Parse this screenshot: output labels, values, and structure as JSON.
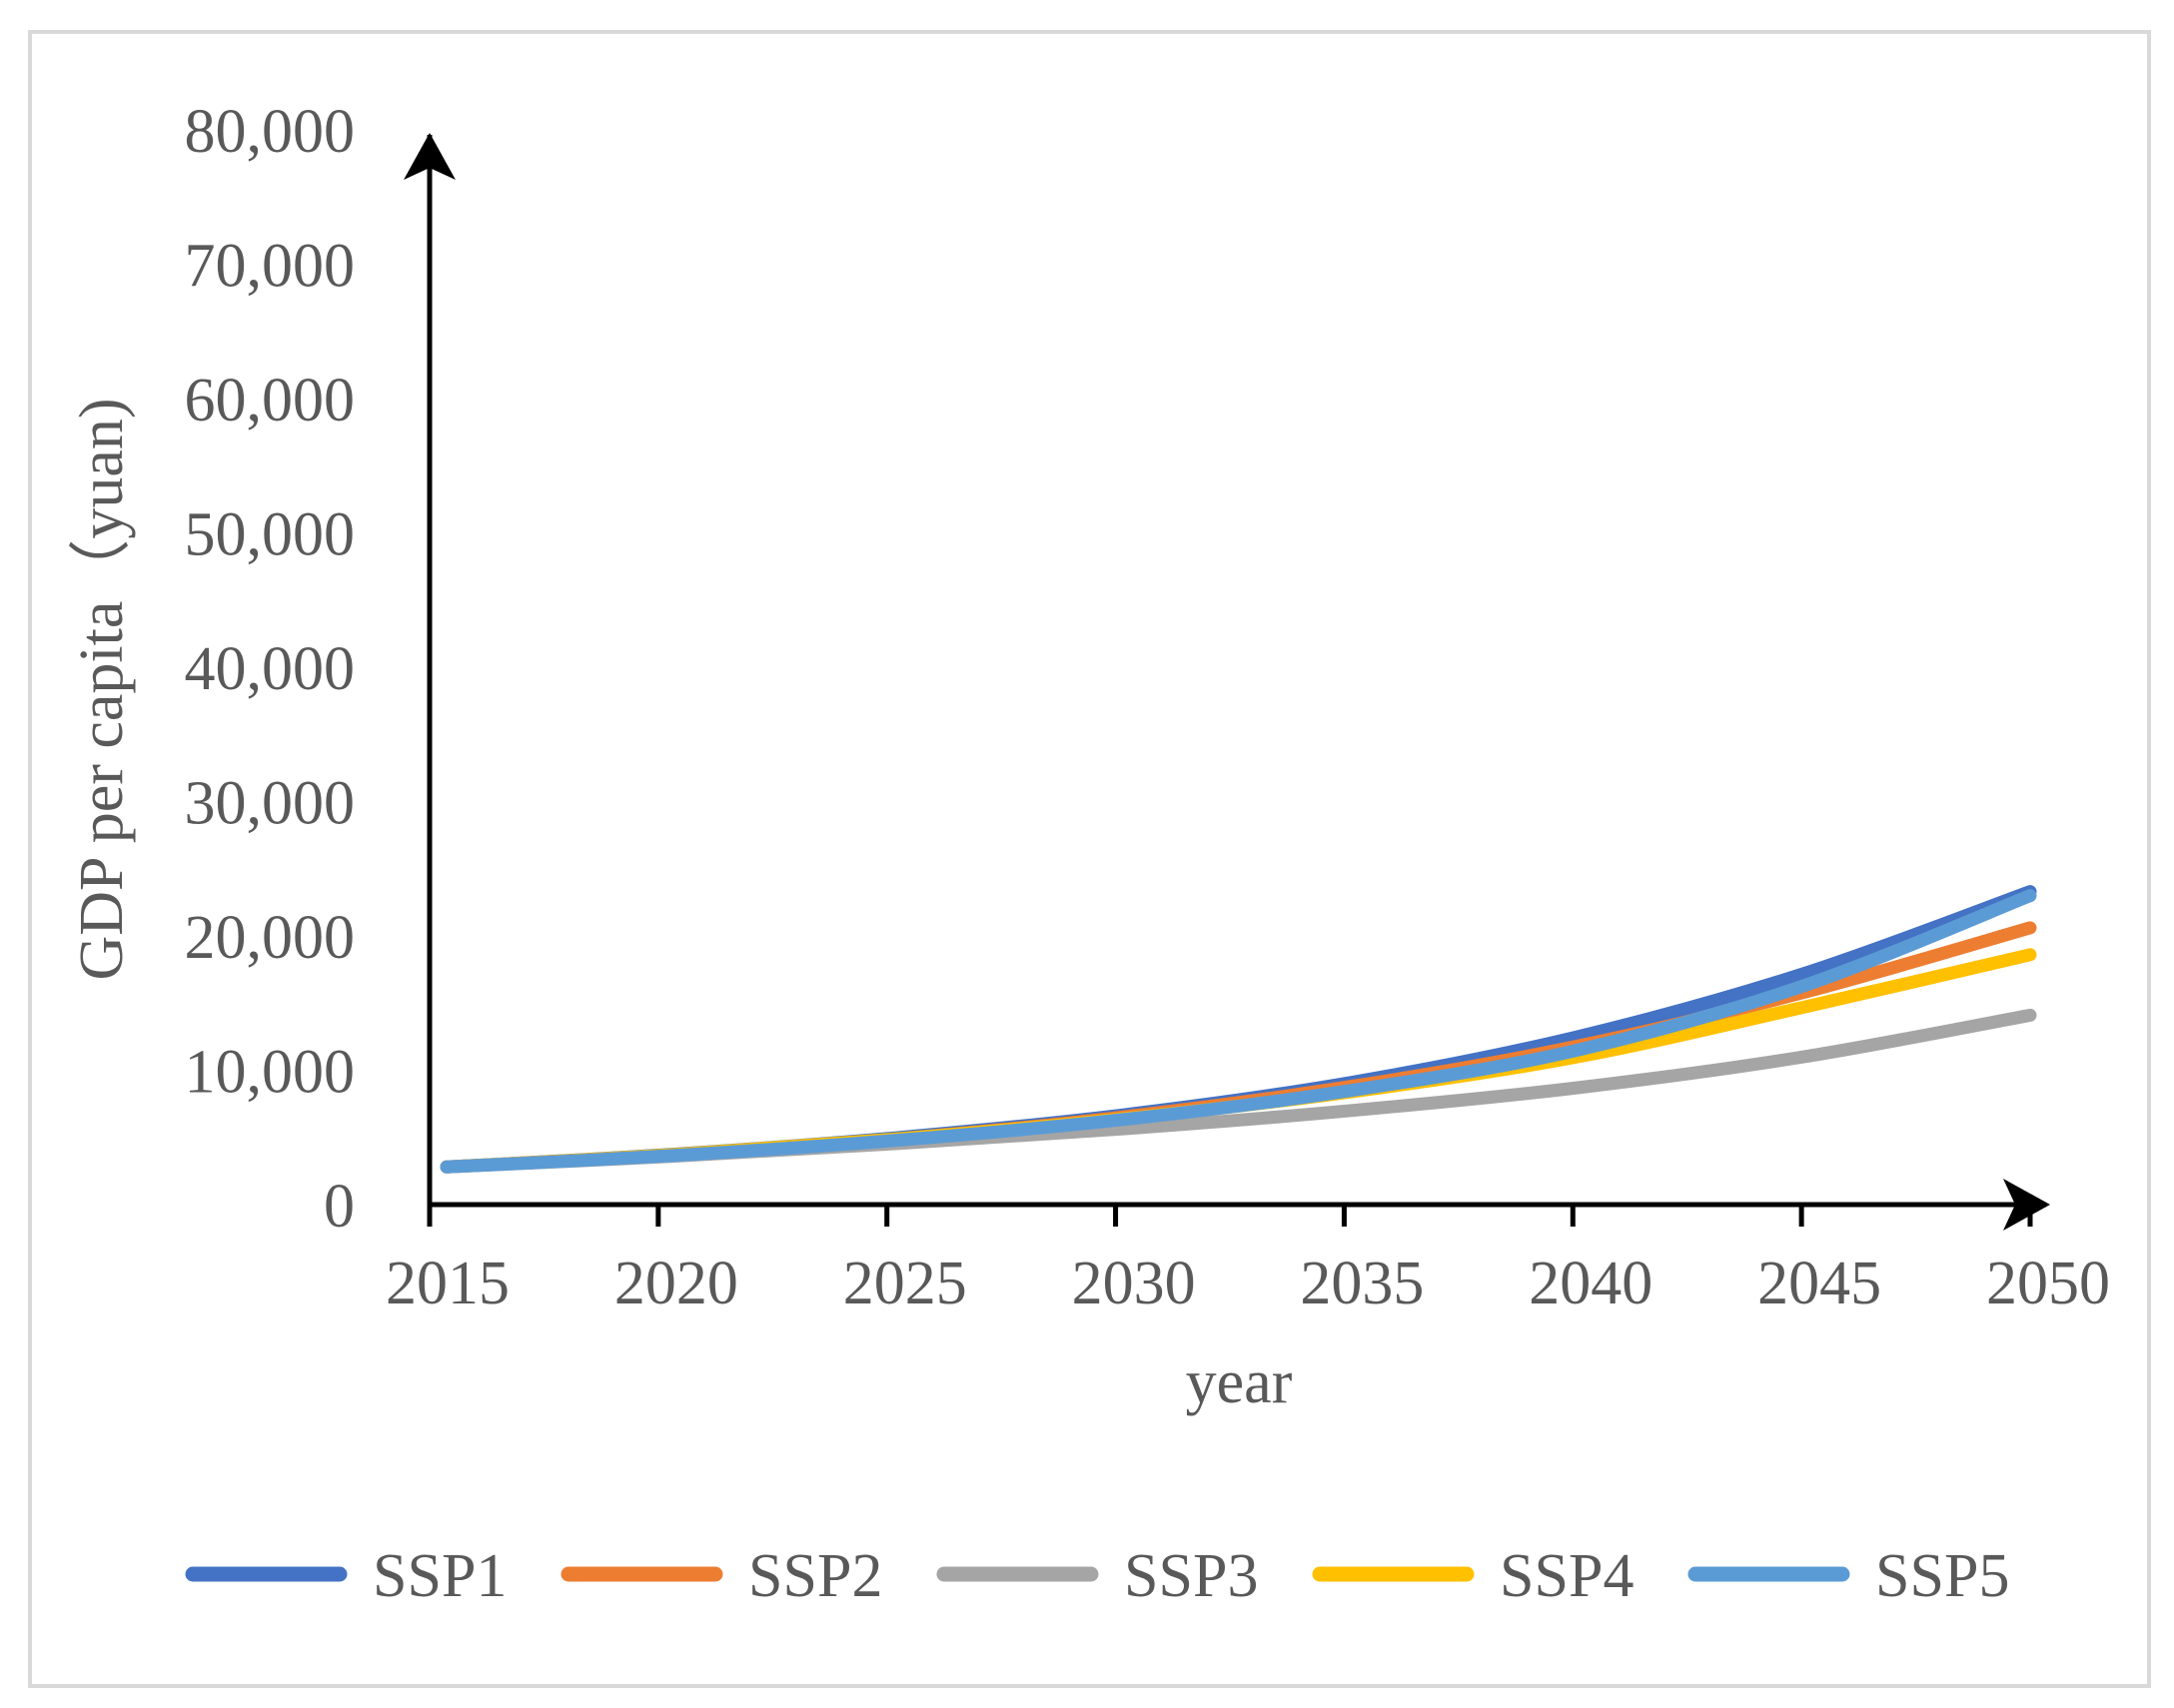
{
  "chart_data": {
    "type": "line",
    "title": "",
    "xlabel": "year",
    "ylabel": "GDP per capita（yuan)",
    "xlim": [
      2015,
      2050
    ],
    "ylim": [
      0,
      80000
    ],
    "x_ticks": [
      2015,
      2020,
      2025,
      2030,
      2035,
      2040,
      2045,
      2050
    ],
    "x_tick_labels": [
      "2015",
      "2020",
      "2025",
      "2030",
      "2035",
      "2040",
      "2045",
      "2050"
    ],
    "y_ticks": [
      0,
      10000,
      20000,
      30000,
      40000,
      50000,
      60000,
      70000,
      80000
    ],
    "y_tick_labels": [
      "0",
      "10,000",
      "20,000",
      "30,000",
      "40,000",
      "50,000",
      "60,000",
      "70,000",
      "80,000"
    ],
    "grid": false,
    "legend_position": "bottom",
    "x": [
      2015,
      2020,
      2025,
      2030,
      2035,
      2040,
      2045,
      2050
    ],
    "series": [
      {
        "name": "SSP1",
        "color": "#4472c4",
        "values": [
          2800,
          3750,
          5000,
          6700,
          9100,
          12500,
          17200,
          23300
        ]
      },
      {
        "name": "SSP2",
        "color": "#ed7d31",
        "values": [
          2800,
          3700,
          4900,
          6550,
          8800,
          11800,
          15800,
          20600
        ]
      },
      {
        "name": "SSP3",
        "color": "#a5a5a5",
        "values": [
          2800,
          3600,
          4550,
          5650,
          7000,
          8700,
          11000,
          14100
        ]
      },
      {
        "name": "SSP4",
        "color": "#ffc000",
        "values": [
          2800,
          3720,
          4900,
          6400,
          8400,
          11000,
          14700,
          18600
        ]
      },
      {
        "name": "SSP5",
        "color": "#5b9bd5",
        "values": [
          2800,
          3650,
          4800,
          6350,
          8500,
          11500,
          16300,
          23000
        ]
      }
    ]
  }
}
